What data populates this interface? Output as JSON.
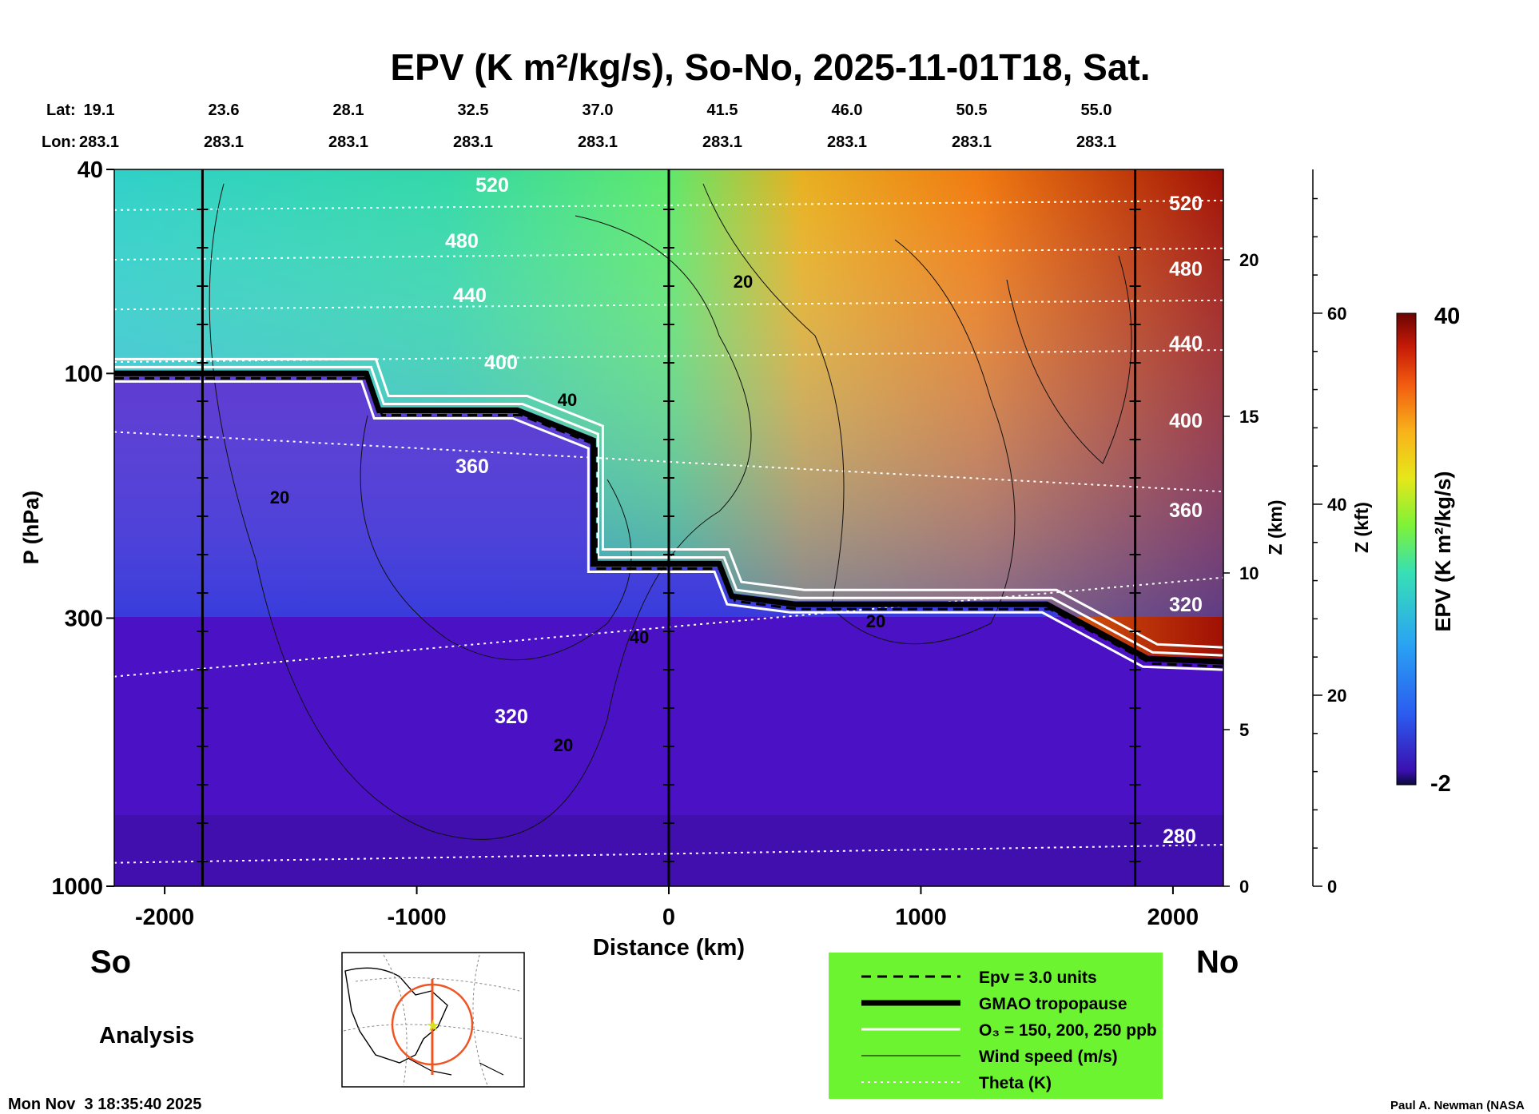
{
  "chart_data": {
    "type": "heatmap",
    "title": "EPV (K m²/kg/s), So-No, 2025-11-01T18, Sat.",
    "xlabel": "Distance (km)",
    "ylabel": "P (hPa)",
    "right_axis_1_label": "Z (km)",
    "right_axis_2_label": "Z (kft)",
    "colorbar_label": "EPV (K m²/kg/s)",
    "colorbar_range": [
      -2,
      40
    ],
    "colorbar_ticks": [
      "40",
      "-2"
    ],
    "xlim": [
      -2200,
      2200
    ],
    "ylim_hpa": [
      1000,
      40
    ],
    "y_log_scale": true,
    "x_ticks": [
      "-2000",
      "-1000",
      "0",
      "1000",
      "2000"
    ],
    "y_ticks": [
      "40",
      "100",
      "300",
      "1000"
    ],
    "z_km_ticks": [
      "20",
      "15",
      "10",
      "5",
      "0"
    ],
    "z_kft_ticks": [
      "60",
      "40",
      "20",
      "0"
    ],
    "lat_label": "Lat:",
    "lon_label": "Lon:",
    "lat_values": [
      "19.1",
      "23.6",
      "28.1",
      "32.5",
      "37.0",
      "41.5",
      "46.0",
      "50.5",
      "55.0"
    ],
    "lon_values": [
      "283.1",
      "283.1",
      "283.1",
      "283.1",
      "283.1",
      "283.1",
      "283.1",
      "283.1",
      "283.1"
    ],
    "end_left": "So",
    "end_right": "No",
    "analysis_label": "Analysis",
    "timestamp": "Mon Nov  3 18:35:40 2025",
    "credit": "Paul A. Newman (NASA",
    "theta_labels": [
      "520",
      "480",
      "440",
      "400",
      "360",
      "320",
      "280"
    ],
    "wind_labels": [
      "20",
      "40"
    ],
    "theta_isentropes_K": [
      520,
      480,
      440,
      400,
      360,
      320,
      280
    ],
    "tropopause_hpa": [
      {
        "x": -2200,
        "p": 100
      },
      {
        "x": -1200,
        "p": 100
      },
      {
        "x": -1150,
        "p": 118
      },
      {
        "x": -600,
        "p": 118
      },
      {
        "x": -300,
        "p": 135
      },
      {
        "x": -300,
        "p": 235
      },
      {
        "x": 200,
        "p": 235
      },
      {
        "x": 250,
        "p": 272
      },
      {
        "x": 500,
        "p": 282
      },
      {
        "x": 1500,
        "p": 282
      },
      {
        "x": 1900,
        "p": 360
      },
      {
        "x": 2200,
        "p": 365
      }
    ],
    "legend": [
      {
        "label": "Epv = 3.0 units",
        "style": "dashed-black"
      },
      {
        "label": "GMAO tropopause",
        "style": "thick-black"
      },
      {
        "label": "O₃ = 150, 200, 250 ppb",
        "style": "white"
      },
      {
        "label": "Wind speed (m/s)",
        "style": "thin-black"
      },
      {
        "label": "Theta (K)",
        "style": "dotted-white"
      }
    ],
    "legend_background": "#6cf431",
    "colormap": [
      "#1b0a4a",
      "#4b15c8",
      "#2b5cf0",
      "#2aa4f3",
      "#37e0b4",
      "#7ef238",
      "#e6e71a",
      "#f9b21b",
      "#f25a10",
      "#c51a07",
      "#6b0404"
    ]
  }
}
